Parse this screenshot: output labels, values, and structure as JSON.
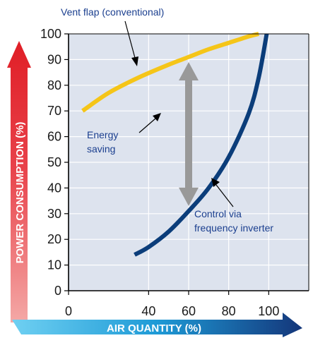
{
  "chart_data": {
    "type": "line",
    "title": "",
    "xlabel": "AIR QUANTITY (%)",
    "ylabel": "POWER CONSUMPTION (%)",
    "xlim": [
      0,
      120
    ],
    "ylim": [
      0,
      100
    ],
    "xticks": [
      "0",
      "40",
      "60",
      "80",
      "100"
    ],
    "xtick_values": [
      0,
      40,
      60,
      80,
      100
    ],
    "yticks": [
      "0",
      "10",
      "20",
      "30",
      "40",
      "50",
      "60",
      "70",
      "80",
      "90",
      "100"
    ],
    "grid": true,
    "series": [
      {
        "name": "Vent flap (conventional)",
        "color": "#f5c518",
        "x": [
          7,
          20,
          35,
          50,
          60,
          70,
          80,
          90,
          95
        ],
        "y": [
          70,
          77,
          83,
          88,
          91,
          94,
          96.5,
          99,
          100
        ]
      },
      {
        "name": "Control via frequency inverter",
        "color": "#0b3d7a",
        "x": [
          33,
          40,
          50,
          60,
          70,
          80,
          90,
          95,
          99
        ],
        "y": [
          14,
          17,
          23,
          31,
          40,
          52,
          69,
          83,
          100
        ]
      }
    ],
    "annotations": [
      {
        "text": [
          "Energy",
          "saving"
        ],
        "x": 60,
        "y_from": 33,
        "y_to": 89
      }
    ],
    "colors": {
      "plot_bg": "#dde3ee",
      "grid": "#ffffff",
      "frame": "#000000",
      "arrow": "#999999",
      "label_text": "#1b3f8f"
    }
  }
}
